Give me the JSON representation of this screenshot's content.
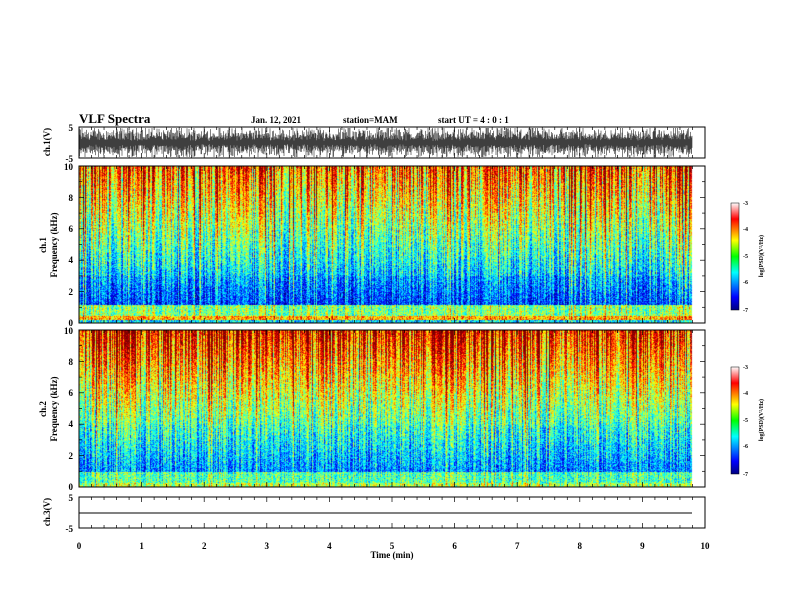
{
  "header": {
    "title": "VLF Spectra",
    "date": "Jan. 12, 2021",
    "station": "station=MAM",
    "start": "start UT =  4 : 0 : 1"
  },
  "chart_data": [
    {
      "type": "line",
      "panel": "ch1-waveform",
      "ylabel": "ch.1(V)",
      "ylim": [
        -5,
        5
      ],
      "yticks": [
        "5",
        "-5"
      ],
      "xlim": [
        0,
        10
      ]
    },
    {
      "type": "heatmap",
      "panel": "ch1-spectrogram",
      "ylabel": "ch.1\nFrequency (kHz)",
      "ylim": [
        0,
        10
      ],
      "yticks": [
        "0",
        "2",
        "4",
        "6",
        "8",
        "10"
      ],
      "xlim": [
        0,
        10
      ],
      "colorbar": {
        "label": "log(PSD)(V²/Hz)",
        "range": [
          -7,
          -3
        ],
        "ticks": [
          "-3",
          "-4",
          "-5",
          "-6",
          "-7"
        ]
      }
    },
    {
      "type": "heatmap",
      "panel": "ch2-spectrogram",
      "ylabel": "ch.2\nFrequency (kHz)",
      "ylim": [
        0,
        10
      ],
      "yticks": [
        "0",
        "2",
        "4",
        "6",
        "8",
        "10"
      ],
      "xlim": [
        0,
        10
      ],
      "colorbar": {
        "label": "log(PSD)(V²/Hz)",
        "range": [
          -7,
          -3
        ],
        "ticks": [
          "-3",
          "-4",
          "-5",
          "-6",
          "-7"
        ]
      }
    },
    {
      "type": "line",
      "panel": "ch3-waveform",
      "ylabel": "ch.3(V)",
      "ylim": [
        -5,
        5
      ],
      "yticks": [
        "5",
        "-5"
      ],
      "xlim": [
        0,
        10
      ],
      "xlabel": "Time (min)",
      "xticks": [
        "0",
        "1",
        "2",
        "3",
        "4",
        "5",
        "6",
        "7",
        "8",
        "9",
        "10"
      ]
    }
  ],
  "labels": {
    "ch1_waveform": "ch.1(V)",
    "ch1_spec_a": "ch.1",
    "ch1_spec_b": "Frequency (kHz)",
    "ch2_spec_a": "ch.2",
    "ch2_spec_b": "Frequency (kHz)",
    "ch3_waveform": "ch.3(V)",
    "cb_label_1": "log(PSD)(V²/Hz)",
    "cb_label_2": "log(PSD)(V²/Hz)",
    "xlabel": "Time (min)",
    "wave_top": "5",
    "wave_bot": "-5",
    "wave3_top": "5",
    "wave3_bot": "-5",
    "cb1_t0": "-3",
    "cb1_t1": "-4",
    "cb1_t2": "-5",
    "cb1_t3": "-6",
    "cb1_t4": "-7",
    "cb2_t0": "-3",
    "cb2_t1": "-4",
    "cb2_t2": "-5",
    "cb2_t3": "-6",
    "cb2_t4": "-7",
    "s1_0": "0",
    "s1_2": "2",
    "s1_4": "4",
    "s1_6": "6",
    "s1_8": "8",
    "s1_10": "10",
    "s2_0": "0",
    "s2_2": "2",
    "s2_4": "4",
    "s2_6": "6",
    "s2_8": "8",
    "s2_10": "10",
    "x0": "0",
    "x1": "1",
    "x2": "2",
    "x3": "3",
    "x4": "4",
    "x5": "5",
    "x6": "6",
    "x7": "7",
    "x8": "8",
    "x9": "9",
    "x10": "10"
  },
  "colors": {
    "jet": [
      "#00008f",
      "#0000ff",
      "#00ffff",
      "#00ff00",
      "#ffff00",
      "#ff0000",
      "#800000"
    ],
    "frame": "#000000"
  }
}
